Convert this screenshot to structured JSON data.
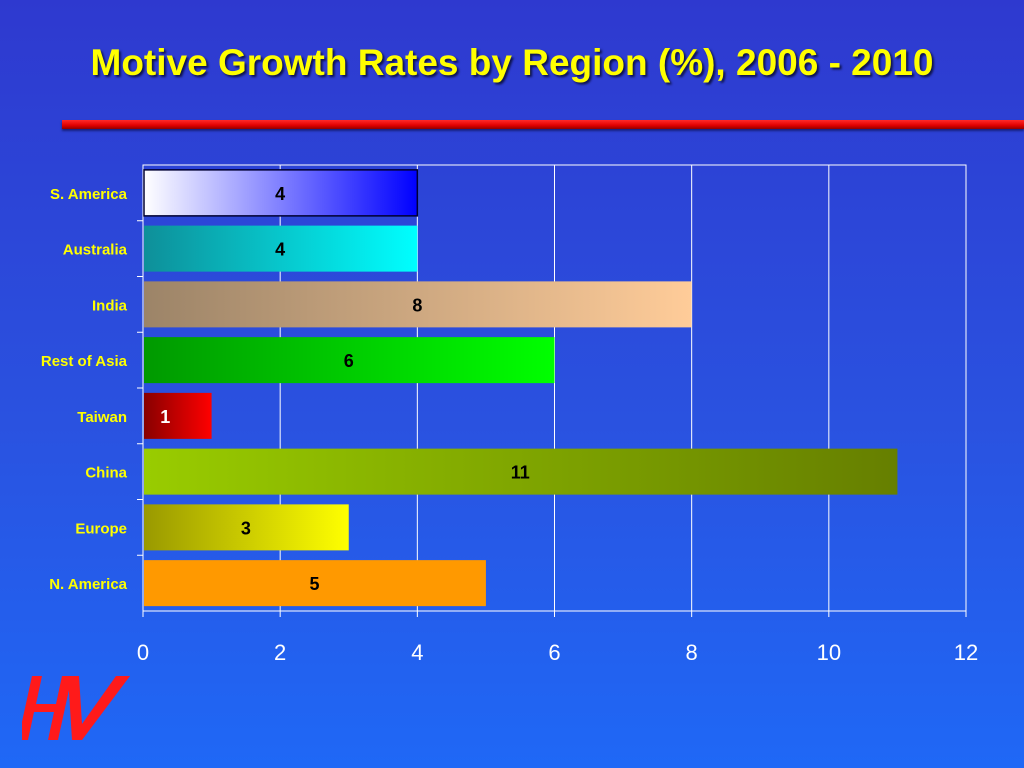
{
  "slide": {
    "title": "Motive Growth Rates by Region (%), 2006 - 2010"
  },
  "colors": {
    "title": "#ffff00",
    "category_labels": "#ffff00",
    "tick_labels": "#ffffff",
    "rule": "#e00000",
    "logo": "#ff1a1a",
    "gridline": "#ffffff"
  },
  "logo": {
    "semantic": "hv-logo",
    "color": "#ff1a1a"
  },
  "chart_data": {
    "type": "bar",
    "orientation": "horizontal",
    "title": "Motive Growth Rates by Region (%), 2006 - 2010",
    "xlabel": "",
    "ylabel": "",
    "xlim": [
      0,
      12
    ],
    "xticks": [
      0,
      2,
      4,
      6,
      8,
      10,
      12
    ],
    "grid": true,
    "legend": "none",
    "categories": [
      "S. America",
      "Australia",
      "India",
      "Rest of Asia",
      "Taiwan",
      "China",
      "Europe",
      "N. America"
    ],
    "values": [
      4,
      4,
      8,
      6,
      1,
      11,
      3,
      5
    ],
    "bar_gradients": [
      [
        "#ffffff",
        "#0000ff"
      ],
      [
        "#0e8f99",
        "#00ffff"
      ],
      [
        "#9c8468",
        "#ffcc99"
      ],
      [
        "#009900",
        "#00ff00"
      ],
      [
        "#880000",
        "#ff0000"
      ],
      [
        "#99cc00",
        "#667f00"
      ],
      [
        "#999900",
        "#ffff00"
      ],
      [
        "#ff9900",
        "#ff9900"
      ]
    ]
  }
}
